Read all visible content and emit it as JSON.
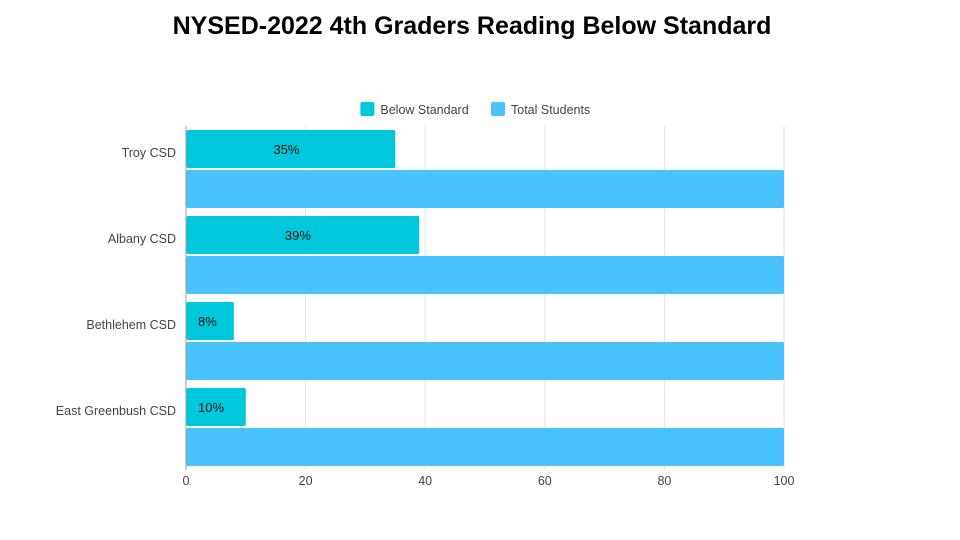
{
  "chart_data": {
    "type": "bar",
    "orientation": "horizontal",
    "title": "NYSED-2022 4th Graders Reading Below Standard",
    "categories": [
      "Troy CSD",
      "Albany CSD",
      "Bethlehem CSD",
      "East Greenbush CSD"
    ],
    "series": [
      {
        "name": "Below Standard",
        "values": [
          35,
          39,
          8,
          10
        ],
        "data_labels": [
          "35%",
          "39%",
          "8%",
          "10%"
        ],
        "color": "#00C8DC"
      },
      {
        "name": "Total Students",
        "values": [
          100,
          100,
          100,
          100
        ],
        "color": "#48C3FC"
      }
    ],
    "xlim": [
      0,
      100
    ],
    "x_ticks": [
      0,
      20,
      40,
      60,
      80,
      100
    ],
    "grid": "vertical",
    "legend_position": "top"
  }
}
